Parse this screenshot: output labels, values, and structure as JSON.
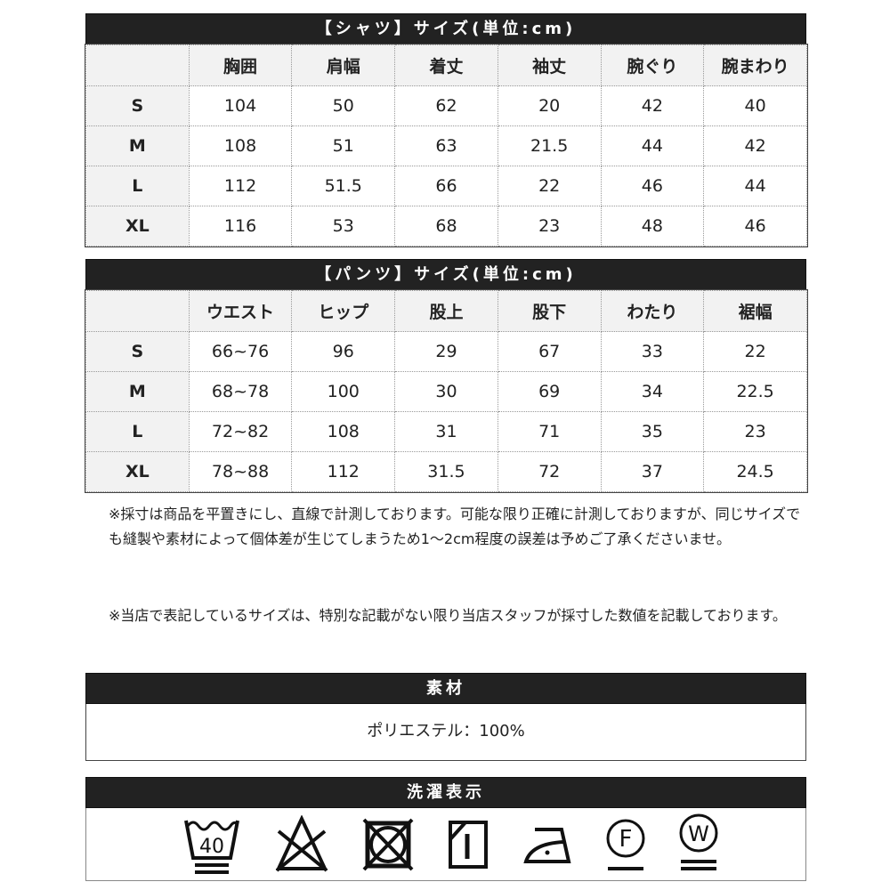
{
  "shirt": {
    "title": "【シャツ】サイズ(単位:cm)",
    "headers": [
      "",
      "胸囲",
      "肩幅",
      "着丈",
      "袖丈",
      "腕ぐり",
      "腕まわり"
    ],
    "rows": [
      [
        "S",
        "104",
        "50",
        "62",
        "20",
        "42",
        "40"
      ],
      [
        "M",
        "108",
        "51",
        "63",
        "21.5",
        "44",
        "42"
      ],
      [
        "L",
        "112",
        "51.5",
        "66",
        "22",
        "46",
        "44"
      ],
      [
        "XL",
        "116",
        "53",
        "68",
        "23",
        "48",
        "46"
      ]
    ]
  },
  "pants": {
    "title": "【パンツ】サイズ(単位:cm)",
    "headers": [
      "",
      "ウエスト",
      "ヒップ",
      "股上",
      "股下",
      "わたり",
      "裾幅"
    ],
    "rows": [
      [
        "S",
        "66~76",
        "96",
        "29",
        "67",
        "33",
        "22"
      ],
      [
        "M",
        "68~78",
        "100",
        "30",
        "69",
        "34",
        "22.5"
      ],
      [
        "L",
        "72~82",
        "108",
        "31",
        "71",
        "35",
        "23"
      ],
      [
        "XL",
        "78~88",
        "112",
        "31.5",
        "72",
        "37",
        "24.5"
      ]
    ]
  },
  "notes": [
    "※採寸は商品を平置きにし、直線で計測しております。可能な限り正確に計測しておりますが、同じサイズでも縫製や素材によって個体差が生じてしまうため1～2cm程度の誤差は予めご了承くださいませ。",
    "※当店で表記しているサイズは、特別な記載がない限り当店スタッフが採寸した数値を記載しております。"
  ],
  "material": {
    "title": "素材",
    "value": "ポリエステル：100%"
  },
  "care": {
    "title": "洗濯表示",
    "icons": [
      "wash-40-icon",
      "no-bleach-icon",
      "no-tumble-dry-icon",
      "shade-drip-dry-icon",
      "iron-low-icon",
      "dry-clean-f-icon",
      "wet-clean-w-icon"
    ],
    "wash_temp": "40",
    "f_label": "F",
    "w_label": "W"
  }
}
